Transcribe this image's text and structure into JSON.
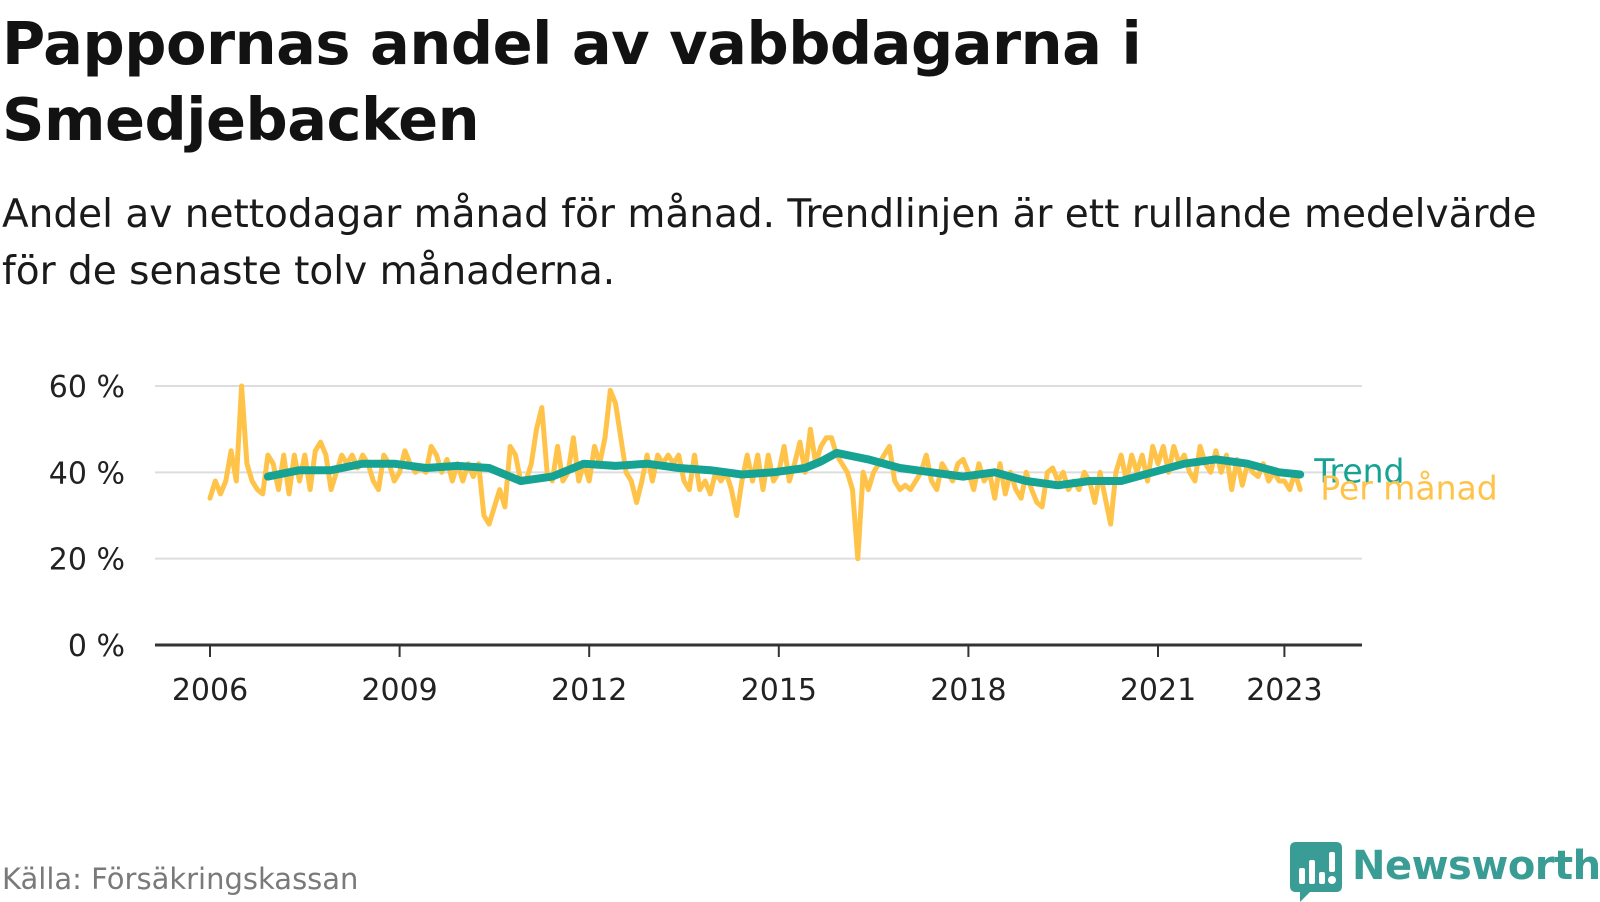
{
  "title": "Pappornas andel av vabbdagarna i Smedjebacken",
  "subtitle": "Andel av nettodagar månad för månad. Trendlinjen är ett rullande medelvärde för de senaste tolv månaderna.",
  "source": "Källa: Försäkringskassan",
  "brand": {
    "name": "Newsworthy",
    "icon": "newsworthy-logo-icon",
    "color": "#3a9d95"
  },
  "colors": {
    "monthly": "#ffc34a",
    "trend": "#16a394",
    "grid": "#dddddd",
    "axis": "#333333"
  },
  "chart_data": {
    "type": "line",
    "ylim": [
      0,
      60
    ],
    "y_ticks": [
      0,
      20,
      40,
      60
    ],
    "y_tick_labels": [
      "0 %",
      "20 %",
      "40 %",
      "60 %"
    ],
    "x_ticks": [
      2006,
      2009,
      2012,
      2015,
      2018,
      2021,
      2023
    ],
    "x_tick_labels": [
      "2006",
      "2009",
      "2012",
      "2015",
      "2018",
      "2021",
      "2023"
    ],
    "grid": true,
    "legend": "direct labels at line ends",
    "series": [
      {
        "name": "Per månad",
        "color": "#ffc34a",
        "points": [
          [
            "2006-01",
            34
          ],
          [
            "2006-02",
            38
          ],
          [
            "2006-03",
            35
          ],
          [
            "2006-04",
            38
          ],
          [
            "2006-05",
            45
          ],
          [
            "2006-06",
            38
          ],
          [
            "2006-07",
            60
          ],
          [
            "2006-08",
            42
          ],
          [
            "2006-09",
            38
          ],
          [
            "2006-10",
            36
          ],
          [
            "2006-11",
            35
          ],
          [
            "2006-12",
            44
          ],
          [
            "2007-01",
            42
          ],
          [
            "2007-02",
            36
          ],
          [
            "2007-03",
            44
          ],
          [
            "2007-04",
            35
          ],
          [
            "2007-05",
            44
          ],
          [
            "2007-06",
            38
          ],
          [
            "2007-07",
            44
          ],
          [
            "2007-08",
            36
          ],
          [
            "2007-09",
            45
          ],
          [
            "2007-10",
            47
          ],
          [
            "2007-11",
            44
          ],
          [
            "2007-12",
            36
          ],
          [
            "2008-01",
            40
          ],
          [
            "2008-02",
            44
          ],
          [
            "2008-03",
            42
          ],
          [
            "2008-04",
            44
          ],
          [
            "2008-05",
            41
          ],
          [
            "2008-06",
            44
          ],
          [
            "2008-07",
            42
          ],
          [
            "2008-08",
            38
          ],
          [
            "2008-09",
            36
          ],
          [
            "2008-10",
            44
          ],
          [
            "2008-11",
            42
          ],
          [
            "2008-12",
            38
          ],
          [
            "2009-01",
            40
          ],
          [
            "2009-02",
            45
          ],
          [
            "2009-03",
            42
          ],
          [
            "2009-04",
            40
          ],
          [
            "2009-05",
            41
          ],
          [
            "2009-06",
            40
          ],
          [
            "2009-07",
            46
          ],
          [
            "2009-08",
            44
          ],
          [
            "2009-09",
            40
          ],
          [
            "2009-10",
            43
          ],
          [
            "2009-11",
            38
          ],
          [
            "2009-12",
            42
          ],
          [
            "2010-01",
            38
          ],
          [
            "2010-02",
            42
          ],
          [
            "2010-03",
            39
          ],
          [
            "2010-04",
            42
          ],
          [
            "2010-05",
            30
          ],
          [
            "2010-06",
            28
          ],
          [
            "2010-07",
            32
          ],
          [
            "2010-08",
            36
          ],
          [
            "2010-09",
            32
          ],
          [
            "2010-10",
            46
          ],
          [
            "2010-11",
            44
          ],
          [
            "2010-12",
            38
          ],
          [
            "2011-01",
            38
          ],
          [
            "2011-02",
            42
          ],
          [
            "2011-03",
            50
          ],
          [
            "2011-04",
            55
          ],
          [
            "2011-05",
            40
          ],
          [
            "2011-06",
            38
          ],
          [
            "2011-07",
            46
          ],
          [
            "2011-08",
            38
          ],
          [
            "2011-09",
            40
          ],
          [
            "2011-10",
            48
          ],
          [
            "2011-11",
            38
          ],
          [
            "2011-12",
            42
          ],
          [
            "2012-01",
            38
          ],
          [
            "2012-02",
            46
          ],
          [
            "2012-03",
            42
          ],
          [
            "2012-04",
            48
          ],
          [
            "2012-05",
            59
          ],
          [
            "2012-06",
            56
          ],
          [
            "2012-07",
            48
          ],
          [
            "2012-08",
            40
          ],
          [
            "2012-09",
            38
          ],
          [
            "2012-10",
            33
          ],
          [
            "2012-11",
            38
          ],
          [
            "2012-12",
            44
          ],
          [
            "2013-01",
            38
          ],
          [
            "2013-02",
            44
          ],
          [
            "2013-03",
            42
          ],
          [
            "2013-04",
            44
          ],
          [
            "2013-05",
            42
          ],
          [
            "2013-06",
            44
          ],
          [
            "2013-07",
            38
          ],
          [
            "2013-08",
            36
          ],
          [
            "2013-09",
            44
          ],
          [
            "2013-10",
            36
          ],
          [
            "2013-11",
            38
          ],
          [
            "2013-12",
            35
          ],
          [
            "2014-01",
            40
          ],
          [
            "2014-02",
            38
          ],
          [
            "2014-03",
            40
          ],
          [
            "2014-04",
            36
          ],
          [
            "2014-05",
            30
          ],
          [
            "2014-06",
            38
          ],
          [
            "2014-07",
            44
          ],
          [
            "2014-08",
            38
          ],
          [
            "2014-09",
            44
          ],
          [
            "2014-10",
            36
          ],
          [
            "2014-11",
            44
          ],
          [
            "2014-12",
            38
          ],
          [
            "2015-01",
            40
          ],
          [
            "2015-02",
            46
          ],
          [
            "2015-03",
            38
          ],
          [
            "2015-04",
            42
          ],
          [
            "2015-05",
            47
          ],
          [
            "2015-06",
            40
          ],
          [
            "2015-07",
            50
          ],
          [
            "2015-08",
            42
          ],
          [
            "2015-09",
            46
          ],
          [
            "2015-10",
            48
          ],
          [
            "2015-11",
            48
          ],
          [
            "2015-12",
            44
          ],
          [
            "2016-01",
            42
          ],
          [
            "2016-02",
            40
          ],
          [
            "2016-03",
            36
          ],
          [
            "2016-04",
            20
          ],
          [
            "2016-05",
            40
          ],
          [
            "2016-06",
            36
          ],
          [
            "2016-07",
            40
          ],
          [
            "2016-08",
            42
          ],
          [
            "2016-09",
            44
          ],
          [
            "2016-10",
            46
          ],
          [
            "2016-11",
            38
          ],
          [
            "2016-12",
            36
          ],
          [
            "2017-01",
            37
          ],
          [
            "2017-02",
            36
          ],
          [
            "2017-03",
            38
          ],
          [
            "2017-04",
            40
          ],
          [
            "2017-05",
            44
          ],
          [
            "2017-06",
            38
          ],
          [
            "2017-07",
            36
          ],
          [
            "2017-08",
            42
          ],
          [
            "2017-09",
            40
          ],
          [
            "2017-10",
            38
          ],
          [
            "2017-11",
            42
          ],
          [
            "2017-12",
            43
          ],
          [
            "2018-01",
            40
          ],
          [
            "2018-02",
            36
          ],
          [
            "2018-03",
            42
          ],
          [
            "2018-04",
            38
          ],
          [
            "2018-05",
            40
          ],
          [
            "2018-06",
            34
          ],
          [
            "2018-07",
            42
          ],
          [
            "2018-08",
            35
          ],
          [
            "2018-09",
            40
          ],
          [
            "2018-10",
            36
          ],
          [
            "2018-11",
            34
          ],
          [
            "2018-12",
            40
          ],
          [
            "2019-01",
            36
          ],
          [
            "2019-02",
            33
          ],
          [
            "2019-03",
            32
          ],
          [
            "2019-04",
            40
          ],
          [
            "2019-05",
            41
          ],
          [
            "2019-06",
            38
          ],
          [
            "2019-07",
            40
          ],
          [
            "2019-08",
            36
          ],
          [
            "2019-09",
            38
          ],
          [
            "2019-10",
            36
          ],
          [
            "2019-11",
            40
          ],
          [
            "2019-12",
            38
          ],
          [
            "2020-01",
            33
          ],
          [
            "2020-02",
            40
          ],
          [
            "2020-03",
            34
          ],
          [
            "2020-04",
            28
          ],
          [
            "2020-05",
            40
          ],
          [
            "2020-06",
            44
          ],
          [
            "2020-07",
            38
          ],
          [
            "2020-08",
            44
          ],
          [
            "2020-09",
            40
          ],
          [
            "2020-10",
            44
          ],
          [
            "2020-11",
            38
          ],
          [
            "2020-12",
            46
          ],
          [
            "2021-01",
            42
          ],
          [
            "2021-02",
            46
          ],
          [
            "2021-03",
            40
          ],
          [
            "2021-04",
            46
          ],
          [
            "2021-05",
            42
          ],
          [
            "2021-06",
            44
          ],
          [
            "2021-07",
            40
          ],
          [
            "2021-08",
            38
          ],
          [
            "2021-09",
            46
          ],
          [
            "2021-10",
            42
          ],
          [
            "2021-11",
            40
          ],
          [
            "2021-12",
            45
          ],
          [
            "2022-01",
            40
          ],
          [
            "2022-02",
            44
          ],
          [
            "2022-03",
            36
          ],
          [
            "2022-04",
            43
          ],
          [
            "2022-05",
            37
          ],
          [
            "2022-06",
            42
          ],
          [
            "2022-07",
            40
          ],
          [
            "2022-08",
            39
          ],
          [
            "2022-09",
            42
          ],
          [
            "2022-10",
            38
          ],
          [
            "2022-11",
            40
          ],
          [
            "2022-12",
            38
          ],
          [
            "2023-01",
            38
          ],
          [
            "2023-02",
            36
          ],
          [
            "2023-03",
            40
          ],
          [
            "2023-04",
            36
          ]
        ]
      },
      {
        "name": "Trend",
        "color": "#16a394",
        "points": [
          [
            "2006-12",
            39
          ],
          [
            "2007-06",
            40.5
          ],
          [
            "2007-12",
            40.5
          ],
          [
            "2008-06",
            42
          ],
          [
            "2008-12",
            42
          ],
          [
            "2009-06",
            41
          ],
          [
            "2009-12",
            41.5
          ],
          [
            "2010-06",
            41
          ],
          [
            "2010-12",
            38
          ],
          [
            "2011-06",
            39
          ],
          [
            "2011-12",
            42
          ],
          [
            "2012-06",
            41.5
          ],
          [
            "2012-12",
            42
          ],
          [
            "2013-06",
            41
          ],
          [
            "2013-12",
            40.5
          ],
          [
            "2014-06",
            39.5
          ],
          [
            "2014-12",
            40
          ],
          [
            "2015-06",
            41
          ],
          [
            "2015-09",
            42.5
          ],
          [
            "2015-12",
            44.5
          ],
          [
            "2016-06",
            43
          ],
          [
            "2016-12",
            41
          ],
          [
            "2017-06",
            40
          ],
          [
            "2017-12",
            39
          ],
          [
            "2018-06",
            40
          ],
          [
            "2018-12",
            38
          ],
          [
            "2019-06",
            37
          ],
          [
            "2019-12",
            38
          ],
          [
            "2020-06",
            38
          ],
          [
            "2020-12",
            40
          ],
          [
            "2021-06",
            42
          ],
          [
            "2021-12",
            43
          ],
          [
            "2022-06",
            42
          ],
          [
            "2022-12",
            40
          ],
          [
            "2023-04",
            39.5
          ]
        ]
      }
    ]
  }
}
